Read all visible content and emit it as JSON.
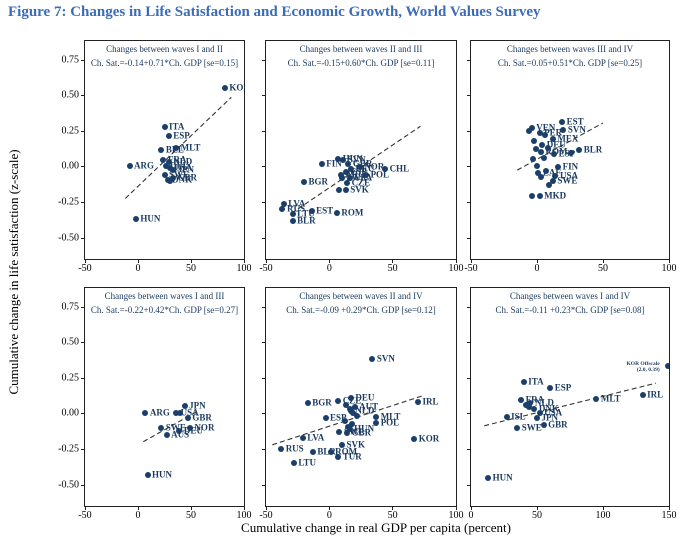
{
  "figure_title": "Figure 7: Changes in Life Satisfaction and Economic Growth, World Values Survey",
  "axes": {
    "x_label": "Cumulative change in real GDP per capita (percent)",
    "y_label": "Cumulative change in life satisfaction (z-scale)",
    "ylim": [
      -0.65,
      0.88
    ],
    "y_ticks": [
      "0.75",
      "0.50",
      "0.25",
      "0.00",
      "-0.25",
      "-0.50"
    ]
  },
  "colors": {
    "title": "#3b6cb7",
    "marker": "#1b3f6b",
    "text": "#1b3a5f",
    "fit_line": "#333333"
  },
  "chart_data": [
    {
      "type": "scatter",
      "title": "Changes between waves I and II",
      "equation": "Ch. Sat.=-0.14+0.71*Ch. GDP [se=0.15]",
      "xlim": [
        -50,
        100
      ],
      "x_ticks": [
        "-50",
        "0",
        "50",
        "100"
      ],
      "show_y_tick_labels": true,
      "fit": {
        "intercept": -0.14,
        "slope": 0.71,
        "se": 0.15,
        "x_from": -12,
        "x_to": 88
      },
      "points": [
        {
          "label": "KOR",
          "x": 82,
          "y": 0.55
        },
        {
          "label": "ITA",
          "x": 25,
          "y": 0.275
        },
        {
          "label": "ESP",
          "x": 29,
          "y": 0.21
        },
        {
          "label": "MLT",
          "x": 36,
          "y": 0.13
        },
        {
          "label": "BEL",
          "x": 22,
          "y": 0.115
        },
        {
          "label": "FRA",
          "x": 24,
          "y": 0.045
        },
        {
          "label": "NLD",
          "x": 29,
          "y": 0.03
        },
        {
          "label": "ARG",
          "x": -8,
          "y": 0.005
        },
        {
          "label": "DEU",
          "x": 26,
          "y": 0.005
        },
        {
          "label": "USA",
          "x": 30,
          "y": -0.01
        },
        {
          "label": "JPN",
          "x": 33,
          "y": -0.025
        },
        {
          "label": "SWE",
          "x": 25,
          "y": -0.06
        },
        {
          "label": "GBR",
          "x": 33,
          "y": -0.08
        },
        {
          "label": "DNK",
          "x": 28,
          "y": -0.095
        },
        {
          "label": "",
          "x": 30,
          "y": -0.1
        },
        {
          "label": "HUN",
          "x": -2,
          "y": -0.37
        }
      ]
    },
    {
      "type": "scatter",
      "title": "Changes between waves II and III",
      "equation": "Ch. Sat.=-0.15+0.60*Ch. GDP [se=0.11]",
      "xlim": [
        -50,
        100
      ],
      "x_ticks": [
        "-50",
        "0",
        "50",
        "100"
      ],
      "show_y_tick_labels": false,
      "fit": {
        "intercept": -0.15,
        "slope": 0.6,
        "se": 0.11,
        "x_from": -30,
        "x_to": 72
      },
      "points": [
        {
          "label": "HUN",
          "x": 7,
          "y": 0.05
        },
        {
          "label": "SVN",
          "x": 11,
          "y": 0.045
        },
        {
          "label": "GBR",
          "x": 15,
          "y": 0.02
        },
        {
          "label": "FIN",
          "x": -6,
          "y": 0.02
        },
        {
          "label": "NOR",
          "x": 24,
          "y": -0.005
        },
        {
          "label": "CHL",
          "x": 44,
          "y": -0.02
        },
        {
          "label": "DEU",
          "x": 17,
          "y": -0.02
        },
        {
          "label": "ESP",
          "x": 13,
          "y": -0.04
        },
        {
          "label": "ARG",
          "x": 9,
          "y": -0.06
        },
        {
          "label": "POL",
          "x": 29,
          "y": -0.06
        },
        {
          "label": "SWE",
          "x": 10,
          "y": -0.08
        },
        {
          "label": "USA",
          "x": 16,
          "y": -0.085
        },
        {
          "label": "BGR",
          "x": -20,
          "y": -0.11
        },
        {
          "label": "CZE",
          "x": 14,
          "y": -0.12
        },
        {
          "label": "",
          "x": 8,
          "y": -0.165
        },
        {
          "label": "SVK",
          "x": 13,
          "y": -0.165
        },
        {
          "label": "LVA",
          "x": -36,
          "y": -0.265
        },
        {
          "label": "RUS",
          "x": -37,
          "y": -0.3
        },
        {
          "label": "EST",
          "x": -14,
          "y": -0.315
        },
        {
          "label": "LTU",
          "x": -29,
          "y": -0.335
        },
        {
          "label": "ROM",
          "x": 6,
          "y": -0.33
        },
        {
          "label": "BLR",
          "x": -29,
          "y": -0.385
        }
      ]
    },
    {
      "type": "scatter",
      "title": "Changes between waves III and IV",
      "equation": "Ch. Sat.=0.05+0.51*Ch. GDP [se=0.25]",
      "xlim": [
        -50,
        100
      ],
      "x_ticks": [
        "-50",
        "0",
        "50",
        "100"
      ],
      "show_y_tick_labels": false,
      "fit": {
        "intercept": 0.05,
        "slope": 0.51,
        "se": 0.25,
        "x_from": -15,
        "x_to": 50
      },
      "points": [
        {
          "label": "EST",
          "x": 19,
          "y": 0.315
        },
        {
          "label": "VEN",
          "x": -4,
          "y": 0.27
        },
        {
          "label": "SVN",
          "x": 20,
          "y": 0.255
        },
        {
          "label": "PER",
          "x": 2,
          "y": 0.235
        },
        {
          "label": "MEX",
          "x": 12,
          "y": 0.195
        },
        {
          "label": "DEU",
          "x": 4,
          "y": 0.15
        },
        {
          "label": "BLR",
          "x": 32,
          "y": 0.115
        },
        {
          "label": "ROM",
          "x": 3,
          "y": 0.1
        },
        {
          "label": "ESP",
          "x": 13,
          "y": 0.085
        },
        {
          "label": "FIN",
          "x": 16,
          "y": -0.005
        },
        {
          "label": "ZAF",
          "x": 1,
          "y": -0.045
        },
        {
          "label": "USA",
          "x": 14,
          "y": -0.07
        },
        {
          "label": "SWE",
          "x": 12,
          "y": -0.105
        },
        {
          "label": "MKD",
          "x": 2,
          "y": -0.21
        },
        {
          "label": "",
          "x": -6,
          "y": 0.245
        },
        {
          "label": "",
          "x": 6,
          "y": 0.22
        },
        {
          "label": "",
          "x": -2,
          "y": 0.175
        },
        {
          "label": "",
          "x": 8,
          "y": 0.13
        },
        {
          "label": "",
          "x": -1,
          "y": 0.12
        },
        {
          "label": "",
          "x": 26,
          "y": 0.095
        },
        {
          "label": "",
          "x": 5,
          "y": 0.06
        },
        {
          "label": "",
          "x": -3,
          "y": 0.05
        },
        {
          "label": "",
          "x": 0,
          "y": 0.005
        },
        {
          "label": "",
          "x": 7,
          "y": -0.03
        },
        {
          "label": "",
          "x": 3,
          "y": -0.075
        },
        {
          "label": "",
          "x": 9,
          "y": -0.13
        },
        {
          "label": "",
          "x": -4,
          "y": -0.21
        }
      ]
    },
    {
      "type": "scatter",
      "title": "Changes between waves I and III",
      "equation": "Ch. Sat.=-0.22+0.42*Ch. GDP [se=0.27]",
      "xlim": [
        -50,
        100
      ],
      "x_ticks": [
        "-50",
        "0",
        "50",
        "100"
      ],
      "show_y_tick_labels": true,
      "fit": {
        "intercept": -0.22,
        "slope": 0.42,
        "se": 0.27,
        "x_from": 5,
        "x_to": 55
      },
      "points": [
        {
          "label": "JPN",
          "x": 44,
          "y": 0.05
        },
        {
          "label": "ARG",
          "x": 7,
          "y": 0.005
        },
        {
          "label": "USA",
          "x": 36,
          "y": 0.0
        },
        {
          "label": "",
          "x": 40,
          "y": 0.0
        },
        {
          "label": "GBR",
          "x": 47,
          "y": -0.03
        },
        {
          "label": "SWE",
          "x": 22,
          "y": -0.1
        },
        {
          "label": "NOR",
          "x": 49,
          "y": -0.1
        },
        {
          "label": "DEU",
          "x": 39,
          "y": -0.125
        },
        {
          "label": "AUS",
          "x": 27,
          "y": -0.15
        },
        {
          "label": "HUN",
          "x": 9,
          "y": -0.43
        }
      ]
    },
    {
      "type": "scatter",
      "title": "Changes between waves II and IV",
      "equation": "Ch. Sat.=-0.09 +0.29*Ch. GDP [se=0.12]",
      "xlim": [
        -50,
        100
      ],
      "x_ticks": [
        "-50",
        "0",
        "50",
        "100"
      ],
      "show_y_tick_labels": false,
      "fit": {
        "intercept": -0.09,
        "slope": 0.29,
        "se": 0.12,
        "x_from": -45,
        "x_to": 75
      },
      "points": [
        {
          "label": "SVN",
          "x": 34,
          "y": 0.38
        },
        {
          "label": "DEU",
          "x": 17,
          "y": 0.105
        },
        {
          "label": "CZE",
          "x": 7,
          "y": 0.085
        },
        {
          "label": "BGR",
          "x": -17,
          "y": 0.07
        },
        {
          "label": "IRL",
          "x": 70,
          "y": 0.08
        },
        {
          "label": "AUT",
          "x": 20,
          "y": 0.045
        },
        {
          "label": "NLD",
          "x": 17,
          "y": 0.02
        },
        {
          "label": "ESP",
          "x": -3,
          "y": -0.035
        },
        {
          "label": "MLT",
          "x": 37,
          "y": -0.025
        },
        {
          "label": "POL",
          "x": 37,
          "y": -0.07
        },
        {
          "label": "HUN",
          "x": 16,
          "y": -0.11
        },
        {
          "label": "SWE",
          "x": 8,
          "y": -0.13
        },
        {
          "label": "GBR",
          "x": 14,
          "y": -0.135
        },
        {
          "label": "LVA",
          "x": -21,
          "y": -0.17
        },
        {
          "label": "KOR",
          "x": 67,
          "y": -0.18
        },
        {
          "label": "SVK",
          "x": 10,
          "y": -0.225
        },
        {
          "label": "RUS",
          "x": -38,
          "y": -0.25
        },
        {
          "label": "BLR",
          "x": -13,
          "y": -0.27
        },
        {
          "label": "ROM",
          "x": 1,
          "y": -0.27
        },
        {
          "label": "TUR",
          "x": 7,
          "y": -0.305
        },
        {
          "label": "LTU",
          "x": -28,
          "y": -0.35
        },
        {
          "label": "",
          "x": 13,
          "y": 0.06
        },
        {
          "label": "",
          "x": 19,
          "y": 0.0
        },
        {
          "label": "",
          "x": 22,
          "y": -0.02
        },
        {
          "label": "",
          "x": 12,
          "y": -0.05
        },
        {
          "label": "",
          "x": 18,
          "y": -0.075
        },
        {
          "label": "",
          "x": 15,
          "y": -0.095
        },
        {
          "label": "",
          "x": 16,
          "y": 0.03
        }
      ]
    },
    {
      "type": "scatter",
      "title": "Changes between waves I and IV",
      "equation": "Ch. Sat.=-0.11 +0.23*Ch. GDP [se=0.08]",
      "xlim": [
        0,
        150
      ],
      "x_ticks": [
        "0",
        "50",
        "100",
        "150"
      ],
      "show_y_tick_labels": false,
      "fit": {
        "intercept": -0.11,
        "slope": 0.23,
        "se": 0.08,
        "x_from": 10,
        "x_to": 140
      },
      "points": [
        {
          "label": "",
          "x": 149,
          "y": 0.33,
          "note": [
            "KOR Offscale",
            "(2.0, 0.39)"
          ]
        },
        {
          "label": "ITA",
          "x": 40,
          "y": 0.22
        },
        {
          "label": "ESP",
          "x": 60,
          "y": 0.175
        },
        {
          "label": "IRL",
          "x": 130,
          "y": 0.13
        },
        {
          "label": "MLT",
          "x": 95,
          "y": 0.1
        },
        {
          "label": "FRA",
          "x": 38,
          "y": 0.095
        },
        {
          "label": "NLD",
          "x": 45,
          "y": 0.075
        },
        {
          "label": "DNK",
          "x": 48,
          "y": 0.03
        },
        {
          "label": "USA",
          "x": 52,
          "y": 0.005
        },
        {
          "label": "ISL",
          "x": 27,
          "y": -0.025
        },
        {
          "label": "JPN",
          "x": 50,
          "y": -0.03
        },
        {
          "label": "GBR",
          "x": 55,
          "y": -0.085
        },
        {
          "label": "SWE",
          "x": 35,
          "y": -0.105
        },
        {
          "label": "HUN",
          "x": 13,
          "y": -0.45
        },
        {
          "label": "",
          "x": 42,
          "y": 0.06
        },
        {
          "label": "",
          "x": 44,
          "y": 0.045
        }
      ]
    }
  ]
}
